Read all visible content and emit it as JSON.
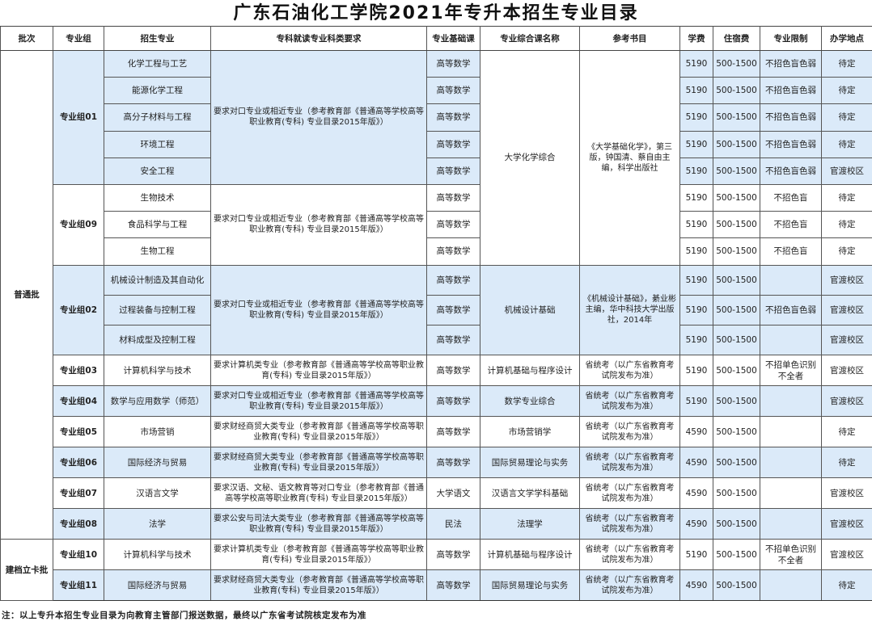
{
  "title": "广东石油化工学院2021年专升本招生专业目录",
  "headers": [
    "批次",
    "专业组",
    "招生专业",
    "专科就读专业科类要求",
    "专业基础课",
    "专业综合课名称",
    "参考书目",
    "学费",
    "住宿费",
    "专业限制",
    "办学地点"
  ],
  "shade_color": "#dbeaf9",
  "batches": [
    {
      "name": "普通批",
      "groups": [
        {
          "group": "专业组01",
          "shaded": true,
          "requirement": "要求对口专业或相近专业（参考教育部《普通高等学校高等职业教育(专科) 专业目录2015年版》）",
          "comprehensive": "大学化学综合",
          "book": "《大学基础化学》，第三版，钟国清、蔡自由主编，科学出版社",
          "majors": [
            {
              "name": "化学工程与工艺",
              "base": "高等数学",
              "fee": "5190",
              "lodging": "500-1500",
              "restriction": "不招色盲色弱",
              "location": "待定"
            },
            {
              "name": "能源化学工程",
              "base": "高等数学",
              "fee": "5190",
              "lodging": "500-1500",
              "restriction": "不招色盲色弱",
              "location": "待定"
            },
            {
              "name": "高分子材料与工程",
              "base": "高等数学",
              "fee": "5190",
              "lodging": "500-1500",
              "restriction": "不招色盲色弱",
              "location": "待定"
            },
            {
              "name": "环境工程",
              "base": "高等数学",
              "fee": "5190",
              "lodging": "500-1500",
              "restriction": "不招色盲色弱",
              "location": "待定"
            },
            {
              "name": "安全工程",
              "base": "高等数学",
              "fee": "5190",
              "lodging": "500-1500",
              "restriction": "不招色盲色弱",
              "location": "官渡校区"
            }
          ]
        },
        {
          "group": "专业组09",
          "shaded": false,
          "requirement": "要求对口专业或相近专业（参考教育部《普通高等学校高等职业教育(专科) 专业目录2015年版》）",
          "comprehensive": null,
          "book": null,
          "majors": [
            {
              "name": "生物技术",
              "base": "高等数学",
              "fee": "5190",
              "lodging": "500-1500",
              "restriction": "不招色盲",
              "location": "待定"
            },
            {
              "name": "食品科学与工程",
              "base": "高等数学",
              "fee": "5190",
              "lodging": "500-1500",
              "restriction": "不招色盲",
              "location": "待定"
            },
            {
              "name": "生物工程",
              "base": "高等数学",
              "fee": "5190",
              "lodging": "500-1500",
              "restriction": "不招色盲",
              "location": "待定"
            }
          ]
        },
        {
          "group": "专业组02",
          "shaded": true,
          "requirement": "要求对口专业或相近专业（参考教育部《普通高等学校高等职业教育(专科) 专业目录2015年版》）",
          "comprehensive": "机械设计基础",
          "book": "《机械设计基础》，綦业彬主编，华中科技大学出版社，2014年",
          "majors": [
            {
              "name": "机械设计制造及其自动化",
              "base": "高等数学",
              "fee": "5190",
              "lodging": "500-1500",
              "restriction": "",
              "location": "官渡校区"
            },
            {
              "name": "过程装备与控制工程",
              "base": "高等数学",
              "fee": "5190",
              "lodging": "500-1500",
              "restriction": "不招色盲色弱",
              "location": "官渡校区"
            },
            {
              "name": "材料成型及控制工程",
              "base": "高等数学",
              "fee": "5190",
              "lodging": "500-1500",
              "restriction": "",
              "location": "官渡校区"
            }
          ]
        },
        {
          "group": "专业组03",
          "shaded": false,
          "requirement": "要求计算机类专业（参考教育部《普通高等学校高等职业教育(专科) 专业目录2015年版》）",
          "comprehensive": "计算机基础与程序设计",
          "book": "省统考（以广东省教育考试院发布为准）",
          "majors": [
            {
              "name": "计算机科学与技术",
              "base": "高等数学",
              "fee": "5190",
              "lodging": "500-1500",
              "restriction": "不招单色识别不全者",
              "location": "官渡校区"
            }
          ]
        },
        {
          "group": "专业组04",
          "shaded": true,
          "requirement": "要求对口专业或相近专业（参考教育部《普通高等学校高等职业教育(专科) 专业目录2015年版》）",
          "comprehensive": "数学专业综合",
          "book": "省统考（以广东省教育考试院发布为准）",
          "majors": [
            {
              "name": "数学与应用数学（师范）",
              "base": "高等数学",
              "fee": "5190",
              "lodging": "500-1500",
              "restriction": "",
              "location": "官渡校区"
            }
          ]
        },
        {
          "group": "专业组05",
          "shaded": false,
          "requirement": "要求财经商贸大类专业（参考教育部《普通高等学校高等职业教育(专科) 专业目录2015年版》）",
          "comprehensive": "市场营销学",
          "book": "省统考（以广东省教育考试院发布为准）",
          "majors": [
            {
              "name": "市场营销",
              "base": "高等数学",
              "fee": "4590",
              "lodging": "500-1500",
              "restriction": "",
              "location": "待定"
            }
          ]
        },
        {
          "group": "专业组06",
          "shaded": true,
          "requirement": "要求财经商贸大类专业（参考教育部《普通高等学校高等职业教育(专科) 专业目录2015年版》）",
          "comprehensive": "国际贸易理论与实务",
          "book": "省统考（以广东省教育考试院发布为准）",
          "majors": [
            {
              "name": "国际经济与贸易",
              "base": "高等数学",
              "fee": "4590",
              "lodging": "500-1500",
              "restriction": "",
              "location": "待定"
            }
          ]
        },
        {
          "group": "专业组07",
          "shaded": false,
          "requirement": "要求汉语、文秘、语文教育等对口专业（参考教育部《普通高等学校高等职业教育(专科) 专业目录2015年版》）",
          "comprehensive": "汉语言文学学科基础",
          "book": "省统考（以广东省教育考试院发布为准）",
          "majors": [
            {
              "name": "汉语言文学",
              "base": "大学语文",
              "fee": "4590",
              "lodging": "500-1500",
              "restriction": "",
              "location": "官渡校区"
            }
          ]
        },
        {
          "group": "专业组08",
          "shaded": true,
          "requirement": "要求公安与司法大类专业（参考教育部《普通高等学校高等职业教育(专科) 专业目录2015年版》）",
          "comprehensive": "法理学",
          "book": "省统考（以广东省教育考试院发布为准）",
          "majors": [
            {
              "name": "法学",
              "base": "民法",
              "fee": "4590",
              "lodging": "500-1500",
              "restriction": "",
              "location": "官渡校区"
            }
          ]
        }
      ]
    },
    {
      "name": "建档立卡批",
      "groups": [
        {
          "group": "专业组10",
          "shaded": false,
          "requirement": "要求计算机类专业（参考教育部《普通高等学校高等职业教育(专科) 专业目录2015年版》）",
          "comprehensive": "计算机基础与程序设计",
          "book": "省统考（以广东省教育考试院发布为准）",
          "majors": [
            {
              "name": "计算机科学与技术",
              "base": "高等数学",
              "fee": "5190",
              "lodging": "500-1500",
              "restriction": "不招单色识别不全者",
              "location": "官渡校区"
            }
          ]
        },
        {
          "group": "专业组11",
          "shaded": true,
          "requirement": "要求财经商贸大类专业（参考教育部《普通高等学校高等职业教育(专科) 专业目录2015年版》）",
          "comprehensive": "国际贸易理论与实务",
          "book": "省统考（以广东省教育考试院发布为准）",
          "majors": [
            {
              "name": "国际经济与贸易",
              "base": "高等数学",
              "fee": "4590",
              "lodging": "500-1500",
              "restriction": "",
              "location": "待定"
            }
          ]
        }
      ]
    }
  ],
  "note": "注：以上专升本招生专业目录为向教育主管部门报送数据，最终以广东省考试院核定发布为准"
}
